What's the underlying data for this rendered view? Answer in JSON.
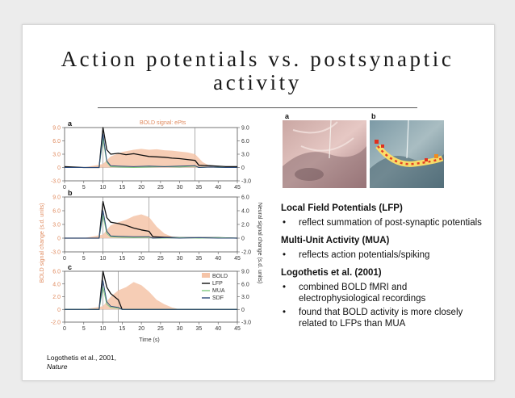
{
  "slide": {
    "title_line1": "Action potentials vs. postsynaptic",
    "title_line2": "activity"
  },
  "figure": {
    "top_annotation": "BOLD signal: ePts",
    "left_axis_title": "BOLD signal change (s.d. units)",
    "right_axis_title": "Neural signal change (s.d. units)",
    "x_axis_title": "Time (s)",
    "legend": [
      "BOLD",
      "LFP",
      "MUA",
      "SDF"
    ],
    "legend_colors": {
      "BOLD": "#f5c4a8",
      "LFP": "#111111",
      "MUA": "#7fc97f",
      "SDF": "#2c4a7a"
    },
    "image_labels": [
      "a",
      "b"
    ]
  },
  "chart_data": [
    {
      "type": "line",
      "panel": "a",
      "x_ticks": [
        "0",
        "5",
        "10",
        "15",
        "20",
        "25",
        "30",
        "35",
        "40",
        "45"
      ],
      "y_left_ticks": [
        "9.0",
        "6.0",
        "3.0",
        "0",
        "-3.0"
      ],
      "y_right_ticks": [
        "9.0",
        "6.0",
        "3.0",
        "0",
        "-3.0"
      ],
      "xlim": [
        0,
        45
      ],
      "ylim": [
        -3,
        9
      ],
      "stimulus_window": [
        10,
        34
      ],
      "series": [
        {
          "name": "BOLD",
          "x": [
            0,
            5,
            10,
            12,
            15,
            18,
            20,
            22,
            24,
            26,
            28,
            30,
            32,
            34,
            36,
            38,
            40,
            42,
            45
          ],
          "y": [
            0,
            0,
            0.8,
            2.5,
            3.5,
            4.0,
            4.2,
            4.0,
            4.1,
            3.9,
            3.8,
            3.6,
            3.4,
            3.0,
            1.2,
            0.3,
            0,
            0,
            0
          ]
        },
        {
          "name": "LFP",
          "x": [
            0,
            5,
            9,
            10,
            11,
            12,
            14,
            16,
            18,
            20,
            22,
            24,
            26,
            28,
            30,
            32,
            34,
            35,
            38,
            42,
            45
          ],
          "y": [
            0.2,
            0,
            0,
            9,
            4,
            3,
            3.2,
            2.9,
            3.1,
            2.8,
            2.5,
            2.4,
            2.3,
            2.1,
            2.0,
            1.8,
            1.6,
            0.5,
            0.4,
            0.2,
            0.2
          ]
        },
        {
          "name": "MUA",
          "x": [
            0,
            5,
            9,
            10,
            11,
            12,
            14,
            18,
            22,
            26,
            30,
            34,
            35,
            38,
            42,
            45
          ],
          "y": [
            0,
            0,
            0,
            6.5,
            1.2,
            0.2,
            0.1,
            0,
            0.1,
            0.2,
            0.1,
            0.3,
            0,
            0.1,
            0,
            0
          ]
        },
        {
          "name": "SDF",
          "x": [
            0,
            5,
            9,
            10,
            11,
            12,
            14,
            18,
            22,
            26,
            30,
            34,
            35,
            38,
            42,
            45
          ],
          "y": [
            0,
            0,
            0,
            7.5,
            1.5,
            0.4,
            0.3,
            0.2,
            0.3,
            0.2,
            0.3,
            0.4,
            0,
            0.1,
            0,
            0
          ]
        }
      ]
    },
    {
      "type": "line",
      "panel": "b",
      "x_ticks": [
        "0",
        "5",
        "10",
        "15",
        "20",
        "25",
        "30",
        "35",
        "40",
        "45"
      ],
      "y_left_ticks": [
        "9.0",
        "6.0",
        "3.0",
        "0",
        "-3.0"
      ],
      "y_right_ticks": [
        "6.0",
        "4.0",
        "2.0",
        "0",
        "-2.0"
      ],
      "xlim": [
        0,
        45
      ],
      "ylim": [
        -3,
        9
      ],
      "stimulus_window": [
        10,
        22
      ],
      "series": [
        {
          "name": "BOLD",
          "x": [
            0,
            5,
            10,
            12,
            14,
            16,
            18,
            20,
            22,
            24,
            26,
            28,
            30,
            35,
            40,
            45
          ],
          "y": [
            0,
            0,
            0.8,
            2.8,
            3.5,
            4.0,
            4.8,
            5.2,
            4.6,
            2.5,
            1.0,
            0.3,
            0,
            0,
            0,
            0
          ]
        },
        {
          "name": "LFP",
          "x": [
            0,
            5,
            9,
            10,
            11,
            12,
            14,
            16,
            18,
            20,
            22,
            23,
            26,
            30,
            35,
            40,
            45
          ],
          "y": [
            0,
            0,
            0,
            8,
            4.5,
            3.5,
            3.2,
            2.8,
            2.2,
            1.8,
            1.5,
            0.3,
            0.2,
            0.1,
            0.1,
            0.1,
            0
          ]
        },
        {
          "name": "MUA",
          "x": [
            0,
            5,
            9,
            10,
            11,
            12,
            14,
            18,
            22,
            23,
            26,
            30,
            35,
            40,
            45
          ],
          "y": [
            0,
            0,
            0,
            5,
            1.0,
            0.3,
            0.2,
            0.1,
            0.2,
            0,
            0,
            0.1,
            0,
            0.1,
            0
          ]
        },
        {
          "name": "SDF",
          "x": [
            0,
            5,
            9,
            10,
            11,
            12,
            14,
            18,
            22,
            23,
            26,
            30,
            35,
            40,
            45
          ],
          "y": [
            0,
            0,
            0,
            6,
            1.5,
            0.5,
            0.4,
            0.3,
            0.3,
            0,
            0.1,
            0,
            0.1,
            0,
            0
          ]
        }
      ]
    },
    {
      "type": "line",
      "panel": "c",
      "x_ticks": [
        "0",
        "5",
        "10",
        "15",
        "20",
        "25",
        "30",
        "35",
        "40",
        "45"
      ],
      "y_left_ticks": [
        "6.0",
        "4.0",
        "2.0",
        "0",
        "-2.0"
      ],
      "y_right_ticks": [
        "9.0",
        "6.0",
        "3.0",
        "0",
        "-3.0"
      ],
      "xlim": [
        0,
        45
      ],
      "ylim": [
        -2,
        6
      ],
      "stimulus_window": [
        10,
        14
      ],
      "series": [
        {
          "name": "BOLD",
          "x": [
            0,
            5,
            10,
            12,
            14,
            16,
            18,
            20,
            22,
            24,
            26,
            28,
            30,
            35,
            40,
            45
          ],
          "y": [
            0,
            0,
            0.5,
            2.0,
            3.0,
            3.5,
            4.3,
            3.8,
            2.8,
            1.5,
            0.8,
            0.3,
            0,
            0,
            0,
            0
          ]
        },
        {
          "name": "LFP",
          "x": [
            0,
            5,
            9,
            10,
            11,
            12,
            13,
            14,
            15,
            18,
            22,
            26,
            30,
            35,
            40,
            45
          ],
          "y": [
            0,
            0,
            0,
            6,
            3.5,
            2.5,
            2.0,
            1.5,
            0,
            0,
            0,
            0,
            0,
            0,
            0,
            0
          ]
        },
        {
          "name": "MUA",
          "x": [
            0,
            5,
            9,
            10,
            11,
            12,
            14,
            15,
            18,
            22,
            26,
            30,
            35,
            40,
            45
          ],
          "y": [
            0,
            0,
            0,
            3.5,
            0.8,
            0.3,
            0.2,
            0,
            0,
            0,
            0,
            0,
            0,
            0,
            0
          ]
        },
        {
          "name": "SDF",
          "x": [
            0,
            5,
            9,
            10,
            11,
            12,
            14,
            15,
            18,
            22,
            26,
            30,
            35,
            40,
            45
          ],
          "y": [
            0,
            0,
            0,
            4.5,
            1.2,
            0.5,
            0.3,
            0,
            0,
            0,
            0,
            0,
            0,
            0,
            0
          ]
        }
      ]
    }
  ],
  "sections": [
    {
      "heading": "Local Field Potentials (LFP)",
      "bullets": [
        "reflect summation of post-synaptic potentials"
      ]
    },
    {
      "heading": "Multi-Unit Activity (MUA)",
      "bullets": [
        "reflects action potentials/spiking"
      ]
    },
    {
      "heading": "Logothetis et al. (2001)",
      "bullets": [
        "combined BOLD fMRI and electrophysiological recordings",
        "found that BOLD activity is more closely related to LFPs than MUA"
      ]
    }
  ],
  "citation": {
    "text": "Logothetis et al., 2001,",
    "journal": "Nature"
  }
}
